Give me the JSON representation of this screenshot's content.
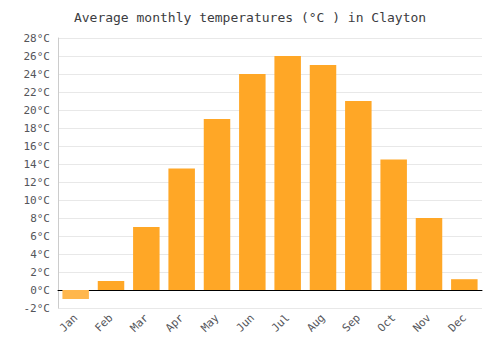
{
  "chart_data": {
    "type": "bar",
    "title": "Average monthly temperatures (°C ) in Clayton",
    "categories": [
      "Jan",
      "Feb",
      "Mar",
      "Apr",
      "May",
      "Jun",
      "Jul",
      "Aug",
      "Sep",
      "Oct",
      "Nov",
      "Dec"
    ],
    "values": [
      -1.0,
      1.0,
      7.0,
      13.5,
      19.0,
      24.0,
      26.0,
      25.0,
      21.0,
      14.5,
      8.0,
      1.2
    ],
    "colors": [
      "#FFB74D",
      "#FFA726",
      "#FFA726",
      "#FFA726",
      "#FFA726",
      "#FFA726",
      "#FFA726",
      "#FFA726",
      "#FFA726",
      "#FFA726",
      "#FFA726",
      "#FFA726"
    ],
    "ylim": [
      -2,
      28
    ],
    "yticks": [
      {
        "value": -2,
        "label": "-2°C"
      },
      {
        "value": 0,
        "label": "0°C"
      },
      {
        "value": 2,
        "label": "2°C"
      },
      {
        "value": 4,
        "label": "4°C"
      },
      {
        "value": 6,
        "label": "6°C"
      },
      {
        "value": 8,
        "label": "8°C"
      },
      {
        "value": 10,
        "label": "10°C"
      },
      {
        "value": 12,
        "label": "12°C"
      },
      {
        "value": 14,
        "label": "14°C"
      },
      {
        "value": 16,
        "label": "16°C"
      },
      {
        "value": 18,
        "label": "18°C"
      },
      {
        "value": 20,
        "label": "20°C"
      },
      {
        "value": 22,
        "label": "22°C"
      },
      {
        "value": 24,
        "label": "24°C"
      },
      {
        "value": 26,
        "label": "26°C"
      },
      {
        "value": 28,
        "label": "28°C"
      }
    ],
    "grid": true
  }
}
